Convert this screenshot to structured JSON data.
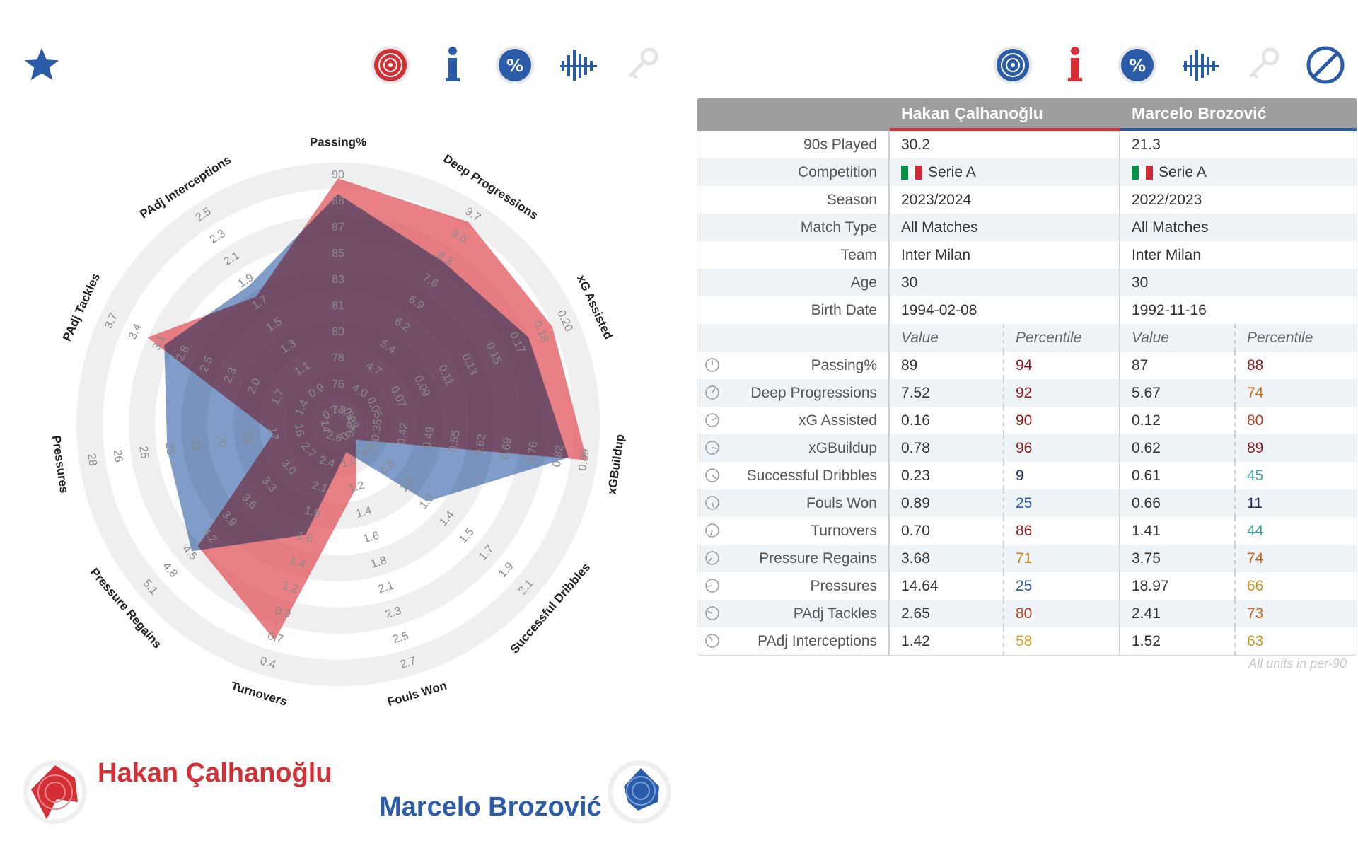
{
  "toolbar_left": {
    "icons": [
      "star-icon",
      "radar-target-icon",
      "info-icon",
      "percent-icon",
      "bars-icon",
      "key-icon"
    ]
  },
  "toolbar_right": {
    "icons": [
      "radar-target-icon",
      "info-icon",
      "percent-icon",
      "bars-icon",
      "key-icon",
      "prohibited-icon"
    ]
  },
  "colors": {
    "player_a": "#d32f35",
    "player_b": "#2a5caa",
    "fill_a": "#e0555d",
    "fill_b": "#4f77b5",
    "overlap": "#5d5d9b"
  },
  "table": {
    "player_a": "Hakan Çalhanoğlu",
    "player_b": "Marcelo Brozović",
    "info_rows": [
      {
        "label": "90s Played",
        "a": "30.2",
        "b": "21.3"
      },
      {
        "label": "Competition",
        "a": "Serie A",
        "b": "Serie A",
        "flag": true
      },
      {
        "label": "Season",
        "a": "2023/2024",
        "b": "2022/2023"
      },
      {
        "label": "Match Type",
        "a": "All Matches",
        "b": "All Matches"
      },
      {
        "label": "Team",
        "a": "Inter Milan",
        "b": "Inter Milan"
      },
      {
        "label": "Age",
        "a": "30",
        "b": "30"
      },
      {
        "label": "Birth Date",
        "a": "1994-02-08",
        "b": "1992-11-16"
      }
    ],
    "sub_header": {
      "value": "Value",
      "percentile": "Percentile"
    },
    "stat_rows": [
      {
        "label": "Passing%",
        "a_val": "89",
        "a_pct": "94",
        "b_val": "87",
        "b_pct": "88",
        "a_col": "#8b1a1a",
        "b_col": "#8b1a1a"
      },
      {
        "label": "Deep Progressions",
        "a_val": "7.52",
        "a_pct": "92",
        "b_val": "5.67",
        "b_pct": "74",
        "a_col": "#8b1a1a",
        "b_col": "#c8681c"
      },
      {
        "label": "xG Assisted",
        "a_val": "0.16",
        "a_pct": "90",
        "b_val": "0.12",
        "b_pct": "80",
        "a_col": "#8b1a1a",
        "b_col": "#b04020"
      },
      {
        "label": "xGBuildup",
        "a_val": "0.78",
        "a_pct": "96",
        "b_val": "0.62",
        "b_pct": "89",
        "a_col": "#8b1a1a",
        "b_col": "#8b1a1a"
      },
      {
        "label": "Successful Dribbles",
        "a_val": "0.23",
        "a_pct": "9",
        "b_val": "0.61",
        "b_pct": "45",
        "a_col": "#1e2d5a",
        "b_col": "#3aa6a0"
      },
      {
        "label": "Fouls Won",
        "a_val": "0.89",
        "a_pct": "25",
        "b_val": "0.66",
        "b_pct": "11",
        "a_col": "#2a5caa",
        "b_col": "#1e2d5a"
      },
      {
        "label": "Turnovers",
        "a_val": "0.70",
        "a_pct": "86",
        "b_val": "1.41",
        "b_pct": "44",
        "a_col": "#8b1a1a",
        "b_col": "#3aa6a0"
      },
      {
        "label": "Pressure Regains",
        "a_val": "3.68",
        "a_pct": "71",
        "b_val": "3.75",
        "b_pct": "74",
        "a_col": "#c8861c",
        "b_col": "#c8681c"
      },
      {
        "label": "Pressures",
        "a_val": "14.64",
        "a_pct": "25",
        "b_val": "18.97",
        "b_pct": "66",
        "a_col": "#2a5caa",
        "b_col": "#c8961c"
      },
      {
        "label": "PAdj Tackles",
        "a_val": "2.65",
        "a_pct": "80",
        "b_val": "2.41",
        "b_pct": "73",
        "a_col": "#b04020",
        "b_col": "#c8681c"
      },
      {
        "label": "PAdj Interceptions",
        "a_val": "1.42",
        "a_pct": "58",
        "b_val": "1.52",
        "b_pct": "63",
        "a_col": "#d4a82a",
        "b_col": "#c8961c"
      }
    ],
    "footnote": "All units in per-90"
  },
  "legend": {
    "player_a": "Hakan Çalhanoğlu",
    "player_b": "Marcelo Brozović"
  },
  "chart_data": {
    "type": "radar",
    "title": "",
    "axes": [
      {
        "label": "Passing%",
        "ticks": [
          "74",
          "76",
          "78",
          "80",
          "81",
          "83",
          "85",
          "87",
          "88",
          "90"
        ]
      },
      {
        "label": "Deep Progressions",
        "ticks": [
          "3.3",
          "4.0",
          "4.7",
          "5.4",
          "6.2",
          "6.9",
          "7.6",
          "8.3",
          "9.0",
          "9.7"
        ]
      },
      {
        "label": "xG Assisted",
        "ticks": [
          "0.03",
          "0.05",
          "0.07",
          "0.09",
          "0.11",
          "0.13",
          "0.15",
          "0.17",
          "0.18",
          "0.20"
        ]
      },
      {
        "label": "xGBuildup",
        "ticks": [
          "0.28",
          "0.35",
          "0.42",
          "0.49",
          "0.55",
          "0.62",
          "0.69",
          "0.76",
          "0.82",
          "0.89"
        ]
      },
      {
        "label": "Successful Dribbles",
        "ticks": [
          "0.4",
          "0.6",
          "0.8",
          "1.0",
          "1.2",
          "1.4",
          "1.5",
          "1.7",
          "1.9",
          "2.1"
        ]
      },
      {
        "label": "Fouls Won",
        "ticks": [
          "1.0",
          "1.2",
          "1.4",
          "1.6",
          "1.8",
          "2.1",
          "2.3",
          "2.5",
          "2.7"
        ]
      },
      {
        "label": "Turnovers",
        "ticks": [
          "2.6",
          "2.4",
          "2.1",
          "1.9",
          "1.6",
          "1.4",
          "1.2",
          "0.9",
          "0.7",
          "0.4"
        ]
      },
      {
        "label": "Pressure Regains",
        "ticks": [
          "2.7",
          "3.0",
          "3.3",
          "3.6",
          "3.9",
          "4.2",
          "4.5",
          "4.8",
          "5.1"
        ]
      },
      {
        "label": "Pressures",
        "ticks": [
          "14",
          "16",
          "17",
          "19",
          "20",
          "22",
          "23",
          "25",
          "26",
          "28"
        ]
      },
      {
        "label": "PAdj Tackles",
        "ticks": [
          "1.4",
          "1.7",
          "2.0",
          "2.3",
          "2.5",
          "2.8",
          "3.1",
          "3.4",
          "3.7"
        ]
      },
      {
        "label": "PAdj Interceptions",
        "ticks": [
          "0.7",
          "0.9",
          "1.1",
          "1.3",
          "1.5",
          "1.7",
          "1.9",
          "2.1",
          "2.3",
          "2.5"
        ]
      }
    ],
    "range": [
      0,
      100
    ],
    "series": [
      {
        "name": "Hakan Çalhanoğlu",
        "values": [
          94,
          92,
          90,
          96,
          9,
          25,
          86,
          71,
          25,
          80,
          58
        ]
      },
      {
        "name": "Marcelo Brozović",
        "values": [
          88,
          74,
          80,
          89,
          45,
          11,
          44,
          74,
          66,
          73,
          63
        ]
      }
    ]
  }
}
